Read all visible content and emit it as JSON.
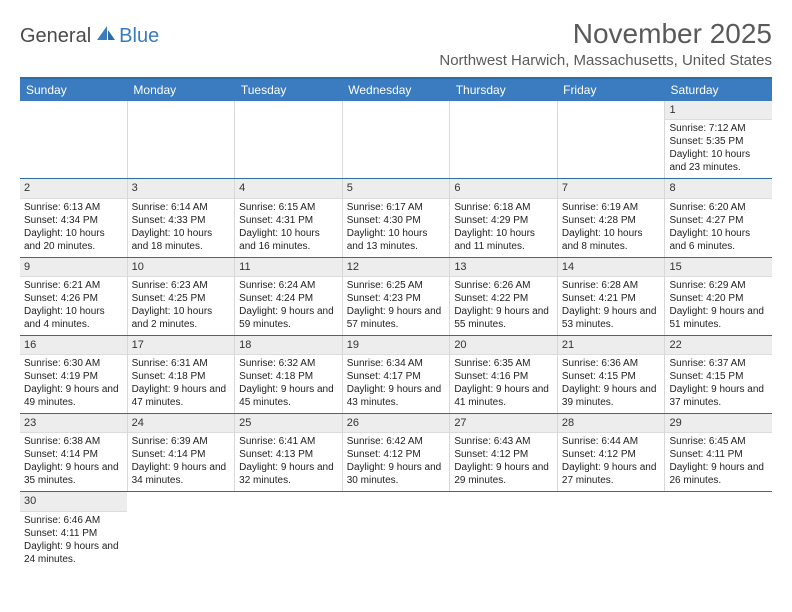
{
  "logo": {
    "text1": "General",
    "text2": "Blue"
  },
  "title": "November 2025",
  "subtitle": "Northwest Harwich, Massachusetts, United States",
  "colors": {
    "header_bg": "#3b7bbf",
    "header_text": "#ffffff",
    "border": "#2e6da4",
    "daynum_bg": "#ededed",
    "cell_border": "#d8d8d8"
  },
  "layout": {
    "cols": 7,
    "rows": 6
  },
  "fontsizes": {
    "title": 28,
    "subtitle": 15,
    "dayheader": 12,
    "daynum": 11,
    "content": 10
  },
  "day_headers": [
    "Sunday",
    "Monday",
    "Tuesday",
    "Wednesday",
    "Thursday",
    "Friday",
    "Saturday"
  ],
  "weeks": [
    [
      null,
      null,
      null,
      null,
      null,
      null,
      {
        "n": "1",
        "sr": "Sunrise: 7:12 AM",
        "ss": "Sunset: 5:35 PM",
        "dl": "Daylight: 10 hours and 23 minutes."
      }
    ],
    [
      {
        "n": "2",
        "sr": "Sunrise: 6:13 AM",
        "ss": "Sunset: 4:34 PM",
        "dl": "Daylight: 10 hours and 20 minutes."
      },
      {
        "n": "3",
        "sr": "Sunrise: 6:14 AM",
        "ss": "Sunset: 4:33 PM",
        "dl": "Daylight: 10 hours and 18 minutes."
      },
      {
        "n": "4",
        "sr": "Sunrise: 6:15 AM",
        "ss": "Sunset: 4:31 PM",
        "dl": "Daylight: 10 hours and 16 minutes."
      },
      {
        "n": "5",
        "sr": "Sunrise: 6:17 AM",
        "ss": "Sunset: 4:30 PM",
        "dl": "Daylight: 10 hours and 13 minutes."
      },
      {
        "n": "6",
        "sr": "Sunrise: 6:18 AM",
        "ss": "Sunset: 4:29 PM",
        "dl": "Daylight: 10 hours and 11 minutes."
      },
      {
        "n": "7",
        "sr": "Sunrise: 6:19 AM",
        "ss": "Sunset: 4:28 PM",
        "dl": "Daylight: 10 hours and 8 minutes."
      },
      {
        "n": "8",
        "sr": "Sunrise: 6:20 AM",
        "ss": "Sunset: 4:27 PM",
        "dl": "Daylight: 10 hours and 6 minutes."
      }
    ],
    [
      {
        "n": "9",
        "sr": "Sunrise: 6:21 AM",
        "ss": "Sunset: 4:26 PM",
        "dl": "Daylight: 10 hours and 4 minutes."
      },
      {
        "n": "10",
        "sr": "Sunrise: 6:23 AM",
        "ss": "Sunset: 4:25 PM",
        "dl": "Daylight: 10 hours and 2 minutes."
      },
      {
        "n": "11",
        "sr": "Sunrise: 6:24 AM",
        "ss": "Sunset: 4:24 PM",
        "dl": "Daylight: 9 hours and 59 minutes."
      },
      {
        "n": "12",
        "sr": "Sunrise: 6:25 AM",
        "ss": "Sunset: 4:23 PM",
        "dl": "Daylight: 9 hours and 57 minutes."
      },
      {
        "n": "13",
        "sr": "Sunrise: 6:26 AM",
        "ss": "Sunset: 4:22 PM",
        "dl": "Daylight: 9 hours and 55 minutes."
      },
      {
        "n": "14",
        "sr": "Sunrise: 6:28 AM",
        "ss": "Sunset: 4:21 PM",
        "dl": "Daylight: 9 hours and 53 minutes."
      },
      {
        "n": "15",
        "sr": "Sunrise: 6:29 AM",
        "ss": "Sunset: 4:20 PM",
        "dl": "Daylight: 9 hours and 51 minutes."
      }
    ],
    [
      {
        "n": "16",
        "sr": "Sunrise: 6:30 AM",
        "ss": "Sunset: 4:19 PM",
        "dl": "Daylight: 9 hours and 49 minutes."
      },
      {
        "n": "17",
        "sr": "Sunrise: 6:31 AM",
        "ss": "Sunset: 4:18 PM",
        "dl": "Daylight: 9 hours and 47 minutes."
      },
      {
        "n": "18",
        "sr": "Sunrise: 6:32 AM",
        "ss": "Sunset: 4:18 PM",
        "dl": "Daylight: 9 hours and 45 minutes."
      },
      {
        "n": "19",
        "sr": "Sunrise: 6:34 AM",
        "ss": "Sunset: 4:17 PM",
        "dl": "Daylight: 9 hours and 43 minutes."
      },
      {
        "n": "20",
        "sr": "Sunrise: 6:35 AM",
        "ss": "Sunset: 4:16 PM",
        "dl": "Daylight: 9 hours and 41 minutes."
      },
      {
        "n": "21",
        "sr": "Sunrise: 6:36 AM",
        "ss": "Sunset: 4:15 PM",
        "dl": "Daylight: 9 hours and 39 minutes."
      },
      {
        "n": "22",
        "sr": "Sunrise: 6:37 AM",
        "ss": "Sunset: 4:15 PM",
        "dl": "Daylight: 9 hours and 37 minutes."
      }
    ],
    [
      {
        "n": "23",
        "sr": "Sunrise: 6:38 AM",
        "ss": "Sunset: 4:14 PM",
        "dl": "Daylight: 9 hours and 35 minutes."
      },
      {
        "n": "24",
        "sr": "Sunrise: 6:39 AM",
        "ss": "Sunset: 4:14 PM",
        "dl": "Daylight: 9 hours and 34 minutes."
      },
      {
        "n": "25",
        "sr": "Sunrise: 6:41 AM",
        "ss": "Sunset: 4:13 PM",
        "dl": "Daylight: 9 hours and 32 minutes."
      },
      {
        "n": "26",
        "sr": "Sunrise: 6:42 AM",
        "ss": "Sunset: 4:12 PM",
        "dl": "Daylight: 9 hours and 30 minutes."
      },
      {
        "n": "27",
        "sr": "Sunrise: 6:43 AM",
        "ss": "Sunset: 4:12 PM",
        "dl": "Daylight: 9 hours and 29 minutes."
      },
      {
        "n": "28",
        "sr": "Sunrise: 6:44 AM",
        "ss": "Sunset: 4:12 PM",
        "dl": "Daylight: 9 hours and 27 minutes."
      },
      {
        "n": "29",
        "sr": "Sunrise: 6:45 AM",
        "ss": "Sunset: 4:11 PM",
        "dl": "Daylight: 9 hours and 26 minutes."
      }
    ],
    [
      {
        "n": "30",
        "sr": "Sunrise: 6:46 AM",
        "ss": "Sunset: 4:11 PM",
        "dl": "Daylight: 9 hours and 24 minutes."
      },
      null,
      null,
      null,
      null,
      null,
      null
    ]
  ]
}
